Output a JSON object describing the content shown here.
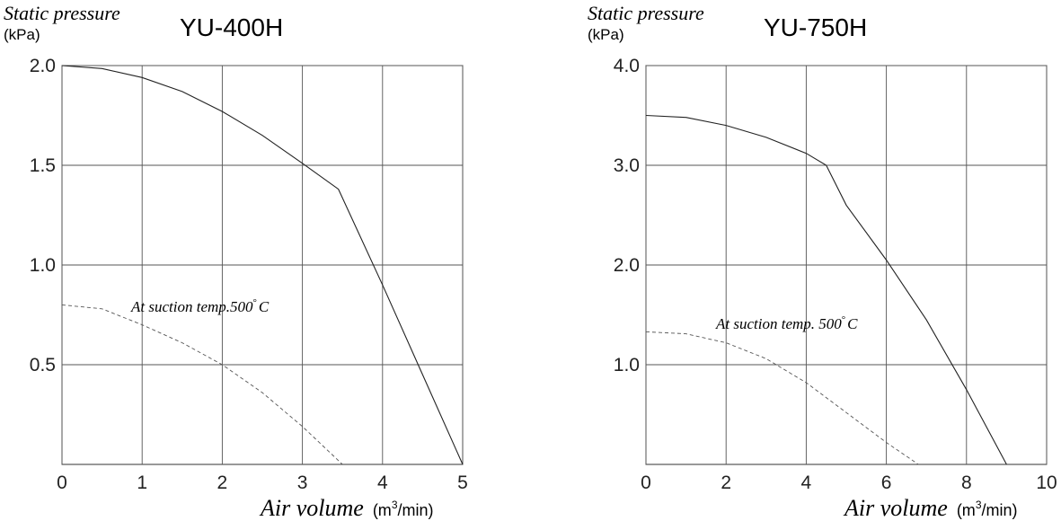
{
  "chart_data": [
    {
      "type": "line",
      "title": "YU-400H",
      "ylabel": "Static pressure",
      "yunit": "(kPa)",
      "xlabel": "Air volume",
      "xunit_base": "(m",
      "xunit_sup": "3",
      "xunit_tail": "/min)",
      "xlim": [
        0,
        5
      ],
      "ylim": [
        0,
        2.0
      ],
      "xticks": [
        0,
        1,
        2,
        3,
        4,
        5
      ],
      "xtick_labels": [
        "0",
        "1",
        "2",
        "3",
        "4",
        "5"
      ],
      "yticks": [
        0.5,
        1.0,
        1.5,
        2.0
      ],
      "ytick_labels": [
        "0.5",
        "1.0",
        "1.5",
        "2.0"
      ],
      "grid": true,
      "annotation": "At suction temp.500",
      "annotation_deg": "°",
      "annotation_unit": "C",
      "series": [
        {
          "style": "solid",
          "x": [
            0,
            0.5,
            1.0,
            1.5,
            2.0,
            2.5,
            3.0,
            3.45,
            4.0,
            4.5,
            5.0
          ],
          "y": [
            2.0,
            1.985,
            1.94,
            1.87,
            1.77,
            1.65,
            1.51,
            1.38,
            0.9,
            0.45,
            0.0
          ]
        },
        {
          "style": "dashed",
          "x": [
            0,
            0.5,
            1.0,
            1.5,
            2.0,
            2.5,
            3.0,
            3.5
          ],
          "y": [
            0.8,
            0.78,
            0.7,
            0.61,
            0.5,
            0.36,
            0.19,
            0.0
          ]
        }
      ]
    },
    {
      "type": "line",
      "title": "YU-750H",
      "ylabel": "Static pressure",
      "yunit": "(kPa)",
      "xlabel": "Air volume",
      "xunit_base": "(m",
      "xunit_sup": "3",
      "xunit_tail": "/min)",
      "xlim": [
        0,
        10
      ],
      "ylim": [
        0,
        4.0
      ],
      "xticks": [
        0,
        2,
        4,
        6,
        8,
        10
      ],
      "xtick_labels": [
        "0",
        "2",
        "4",
        "6",
        "8",
        "10"
      ],
      "yticks": [
        1.0,
        2.0,
        3.0,
        4.0
      ],
      "ytick_labels": [
        "1.0",
        "2.0",
        "3.0",
        "4.0"
      ],
      "grid": true,
      "annotation": "At suction temp. 500",
      "annotation_deg": "°",
      "annotation_unit": "C",
      "series": [
        {
          "style": "solid",
          "x": [
            0,
            1,
            2,
            3,
            4,
            4.5,
            5,
            6,
            7,
            8,
            9
          ],
          "y": [
            3.5,
            3.48,
            3.4,
            3.28,
            3.12,
            3.0,
            2.6,
            2.05,
            1.45,
            0.75,
            0.0
          ]
        },
        {
          "style": "dashed",
          "x": [
            0,
            1,
            2,
            3,
            4,
            5,
            6,
            6.8
          ],
          "y": [
            1.33,
            1.31,
            1.22,
            1.06,
            0.82,
            0.52,
            0.22,
            0.0
          ]
        }
      ]
    }
  ]
}
